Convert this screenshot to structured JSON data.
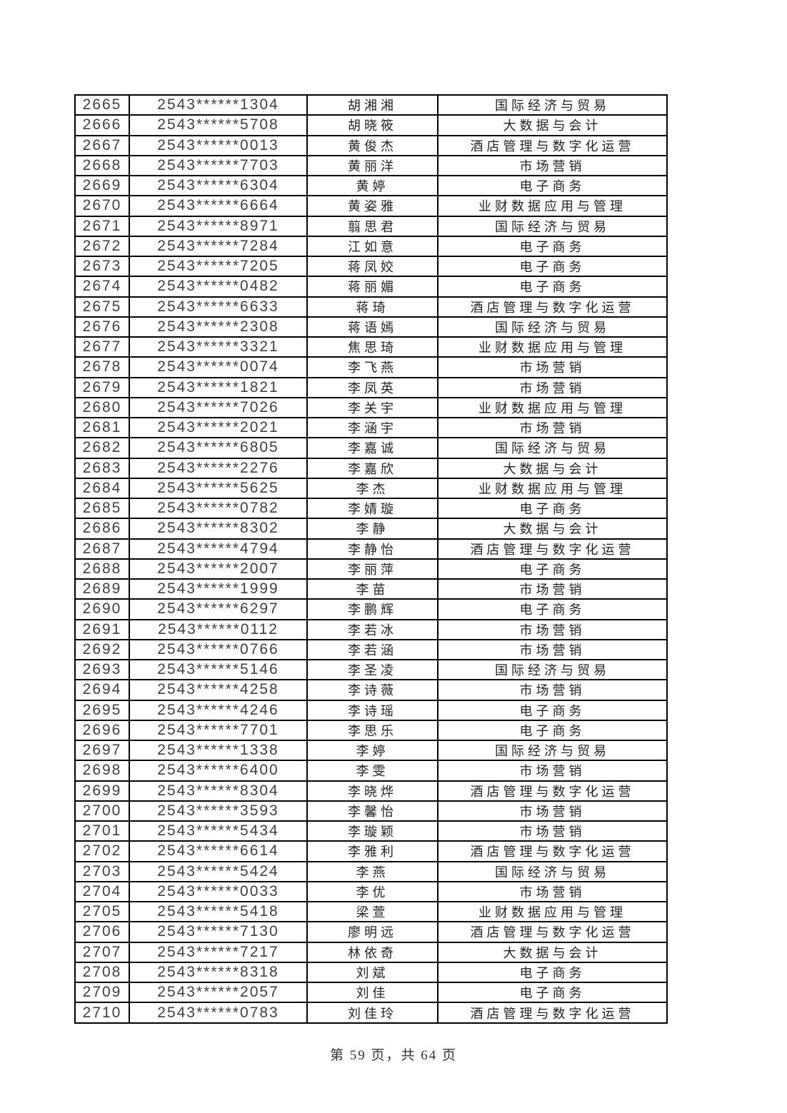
{
  "page": {
    "footer": "第 59 页，共 64 页"
  },
  "table": {
    "row_fields": [
      "seq",
      "exam_id",
      "name",
      "major"
    ],
    "rows": [
      {
        "seq": "2665",
        "exam_id": "2543******1304",
        "name": "胡湘湘",
        "major": "国际经济与贸易"
      },
      {
        "seq": "2666",
        "exam_id": "2543******5708",
        "name": "胡晓筱",
        "major": "大数据与会计"
      },
      {
        "seq": "2667",
        "exam_id": "2543******0013",
        "name": "黄俊杰",
        "major": "酒店管理与数字化运营"
      },
      {
        "seq": "2668",
        "exam_id": "2543******7703",
        "name": "黄丽洋",
        "major": "市场营销"
      },
      {
        "seq": "2669",
        "exam_id": "2543******6304",
        "name": "黄婷",
        "major": "电子商务"
      },
      {
        "seq": "2670",
        "exam_id": "2543******6664",
        "name": "黄姿雅",
        "major": "业财数据应用与管理"
      },
      {
        "seq": "2671",
        "exam_id": "2543******8971",
        "name": "翦思君",
        "major": "国际经济与贸易"
      },
      {
        "seq": "2672",
        "exam_id": "2543******7284",
        "name": "江如意",
        "major": "电子商务"
      },
      {
        "seq": "2673",
        "exam_id": "2543******7205",
        "name": "蒋凤姣",
        "major": "电子商务"
      },
      {
        "seq": "2674",
        "exam_id": "2543******0482",
        "name": "蒋丽媚",
        "major": "电子商务"
      },
      {
        "seq": "2675",
        "exam_id": "2543******6633",
        "name": "蒋琦",
        "major": "酒店管理与数字化运营"
      },
      {
        "seq": "2676",
        "exam_id": "2543******2308",
        "name": "蒋语嫣",
        "major": "国际经济与贸易"
      },
      {
        "seq": "2677",
        "exam_id": "2543******3321",
        "name": "焦思琦",
        "major": "业财数据应用与管理"
      },
      {
        "seq": "2678",
        "exam_id": "2543******0074",
        "name": "李飞燕",
        "major": "市场营销"
      },
      {
        "seq": "2679",
        "exam_id": "2543******1821",
        "name": "李凤英",
        "major": "市场营销"
      },
      {
        "seq": "2680",
        "exam_id": "2543******7026",
        "name": "李关宇",
        "major": "业财数据应用与管理"
      },
      {
        "seq": "2681",
        "exam_id": "2543******2021",
        "name": "李涵宇",
        "major": "市场营销"
      },
      {
        "seq": "2682",
        "exam_id": "2543******6805",
        "name": "李嘉诚",
        "major": "国际经济与贸易"
      },
      {
        "seq": "2683",
        "exam_id": "2543******2276",
        "name": "李嘉欣",
        "major": "大数据与会计"
      },
      {
        "seq": "2684",
        "exam_id": "2543******5625",
        "name": "李杰",
        "major": "业财数据应用与管理"
      },
      {
        "seq": "2685",
        "exam_id": "2543******0782",
        "name": "李婧璇",
        "major": "电子商务"
      },
      {
        "seq": "2686",
        "exam_id": "2543******8302",
        "name": "李静",
        "major": "大数据与会计"
      },
      {
        "seq": "2687",
        "exam_id": "2543******4794",
        "name": "李静怡",
        "major": "酒店管理与数字化运营"
      },
      {
        "seq": "2688",
        "exam_id": "2543******2007",
        "name": "李丽萍",
        "major": "电子商务"
      },
      {
        "seq": "2689",
        "exam_id": "2543******1999",
        "name": "李苗",
        "major": "市场营销"
      },
      {
        "seq": "2690",
        "exam_id": "2543******6297",
        "name": "李鹏辉",
        "major": "电子商务"
      },
      {
        "seq": "2691",
        "exam_id": "2543******0112",
        "name": "李若冰",
        "major": "市场营销"
      },
      {
        "seq": "2692",
        "exam_id": "2543******0766",
        "name": "李若涵",
        "major": "市场营销"
      },
      {
        "seq": "2693",
        "exam_id": "2543******5146",
        "name": "李圣凌",
        "major": "国际经济与贸易"
      },
      {
        "seq": "2694",
        "exam_id": "2543******4258",
        "name": "李诗薇",
        "major": "市场营销"
      },
      {
        "seq": "2695",
        "exam_id": "2543******4246",
        "name": "李诗瑶",
        "major": "电子商务"
      },
      {
        "seq": "2696",
        "exam_id": "2543******7701",
        "name": "李思乐",
        "major": "电子商务"
      },
      {
        "seq": "2697",
        "exam_id": "2543******1338",
        "name": "李婷",
        "major": "国际经济与贸易"
      },
      {
        "seq": "2698",
        "exam_id": "2543******6400",
        "name": "李雯",
        "major": "市场营销"
      },
      {
        "seq": "2699",
        "exam_id": "2543******8304",
        "name": "李晓烨",
        "major": "酒店管理与数字化运营"
      },
      {
        "seq": "2700",
        "exam_id": "2543******3593",
        "name": "李馨怡",
        "major": "市场营销"
      },
      {
        "seq": "2701",
        "exam_id": "2543******5434",
        "name": "李璇颖",
        "major": "市场营销"
      },
      {
        "seq": "2702",
        "exam_id": "2543******6614",
        "name": "李雅利",
        "major": "酒店管理与数字化运营"
      },
      {
        "seq": "2703",
        "exam_id": "2543******5424",
        "name": "李燕",
        "major": "国际经济与贸易"
      },
      {
        "seq": "2704",
        "exam_id": "2543******0033",
        "name": "李优",
        "major": "市场营销"
      },
      {
        "seq": "2705",
        "exam_id": "2543******5418",
        "name": "梁萱",
        "major": "业财数据应用与管理"
      },
      {
        "seq": "2706",
        "exam_id": "2543******7130",
        "name": "廖明远",
        "major": "酒店管理与数字化运营"
      },
      {
        "seq": "2707",
        "exam_id": "2543******7217",
        "name": "林依奇",
        "major": "大数据与会计"
      },
      {
        "seq": "2708",
        "exam_id": "2543******8318",
        "name": "刘斌",
        "major": "电子商务"
      },
      {
        "seq": "2709",
        "exam_id": "2543******2057",
        "name": "刘佳",
        "major": "电子商务"
      },
      {
        "seq": "2710",
        "exam_id": "2543******0783",
        "name": "刘佳玲",
        "major": "酒店管理与数字化运营"
      }
    ]
  }
}
